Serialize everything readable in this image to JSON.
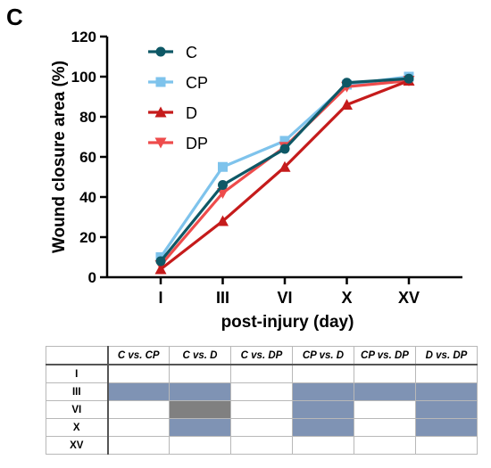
{
  "panel_label": "C",
  "chart_data": {
    "type": "line",
    "title": "",
    "xlabel": "post-injury (day)",
    "ylabel": "Wound closure area (%)",
    "categories": [
      "I",
      "III",
      "VI",
      "X",
      "XV"
    ],
    "ylim": [
      0,
      120
    ],
    "yticks": [
      0,
      20,
      40,
      60,
      80,
      100,
      120
    ],
    "grid": false,
    "legend_position": "top-left",
    "series": [
      {
        "name": "C",
        "color": "#0e5866",
        "marker": "circle",
        "values": [
          8,
          46,
          64,
          97,
          99
        ],
        "errors": [
          1,
          1.5,
          1.5,
          1,
          1
        ]
      },
      {
        "name": "CP",
        "color": "#7ec3ec",
        "marker": "square",
        "values": [
          10,
          55,
          68,
          96,
          100
        ],
        "errors": [
          1.5,
          1.5,
          1.5,
          1,
          1
        ]
      },
      {
        "name": "D",
        "color": "#c51b1b",
        "marker": "triangle-up",
        "values": [
          4,
          28,
          55,
          86,
          98
        ],
        "errors": [
          1,
          1.5,
          1.5,
          1.5,
          1
        ]
      },
      {
        "name": "DP",
        "color": "#ee4c4c",
        "marker": "triangle-down",
        "values": [
          6,
          42,
          65,
          95,
          98
        ],
        "errors": [
          1,
          1.5,
          1.5,
          1,
          1
        ]
      }
    ]
  },
  "stat_table": {
    "columns": [
      "C vs. CP",
      "C vs. D",
      "C vs. DP",
      "CP vs. D",
      "CP vs. DP",
      "D vs. DP"
    ],
    "rows": [
      {
        "label": "I",
        "cells": [
          "none",
          "none",
          "none",
          "none",
          "none",
          "none"
        ]
      },
      {
        "label": "III",
        "cells": [
          "blue",
          "blue",
          "none",
          "blue",
          "blue",
          "blue"
        ]
      },
      {
        "label": "VI",
        "cells": [
          "none",
          "gray",
          "none",
          "blue",
          "none",
          "blue"
        ]
      },
      {
        "label": "X",
        "cells": [
          "none",
          "blue",
          "none",
          "blue",
          "none",
          "blue"
        ]
      },
      {
        "label": "XV",
        "cells": [
          "none",
          "none",
          "none",
          "none",
          "none",
          "none"
        ]
      }
    ],
    "colors": {
      "blue": "#7f93b4",
      "gray": "#808080"
    }
  }
}
